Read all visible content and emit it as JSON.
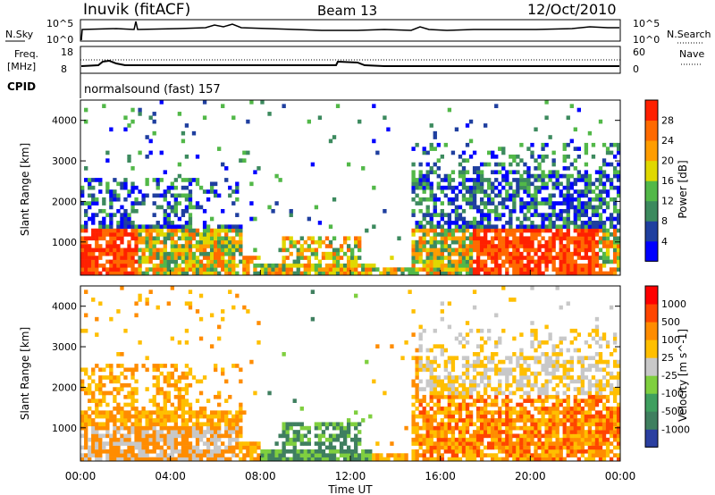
{
  "header": {
    "station": "Inuvik (fitACF)",
    "beam": "Beam 13",
    "date": "12/Oct/2010"
  },
  "noise_panel": {
    "left_label": "N.Sky",
    "left_ticks": [
      "10^5",
      "10^0"
    ],
    "right_label": "N.Search",
    "right_ticks": [
      "10^5",
      "10^0"
    ]
  },
  "freq_panel": {
    "left_label_1": "Freq.",
    "left_label_2": "[MHz]",
    "left_ticks": [
      "18",
      "8"
    ],
    "right_label": "Nave",
    "right_ticks": [
      "60",
      "0"
    ],
    "cpid_label": "CPID",
    "cpid_text": "normalsound (fast) 157"
  },
  "chart_data": [
    {
      "type": "heatmap",
      "name": "power",
      "ylabel": "Slant Range [km]",
      "ylim": [
        180,
        4500
      ],
      "yticks": [
        "1000",
        "2000",
        "3000",
        "4000"
      ],
      "colorbar_label": "Power [dB]",
      "colorbar_ticks": [
        "28",
        "24",
        "20",
        "16",
        "12",
        "8",
        "4"
      ],
      "colors": [
        "#0000ff",
        "#1f3f9f",
        "#3c8a5e",
        "#52b848",
        "#e0d800",
        "#ff9d00",
        "#ff6a00",
        "#ff2000"
      ],
      "xlim": [
        "00:00",
        "24:00"
      ]
    },
    {
      "type": "heatmap",
      "name": "velocity",
      "ylabel": "Slant Range [km]",
      "ylim": [
        180,
        4500
      ],
      "yticks": [
        "1000",
        "2000",
        "3000",
        "4000"
      ],
      "colorbar_label": "Velocity [m s^-1]",
      "colorbar_ticks": [
        "1000",
        "500",
        "100",
        "25",
        "-25",
        "-100",
        "-500",
        "-1000"
      ],
      "colors": [
        "#2b3fa0",
        "#3f7f5f",
        "#3f9f5f",
        "#7fcf3f",
        "#c8c8c8",
        "#ffbf00",
        "#ff8c00",
        "#ff4500",
        "#ff0000"
      ],
      "xlim": [
        "00:00",
        "24:00"
      ]
    }
  ],
  "x_axis": {
    "ticks": [
      "00:00",
      "04:00",
      "08:00",
      "12:00",
      "16:00",
      "20:00",
      "00:00"
    ],
    "label": "Time UT"
  }
}
